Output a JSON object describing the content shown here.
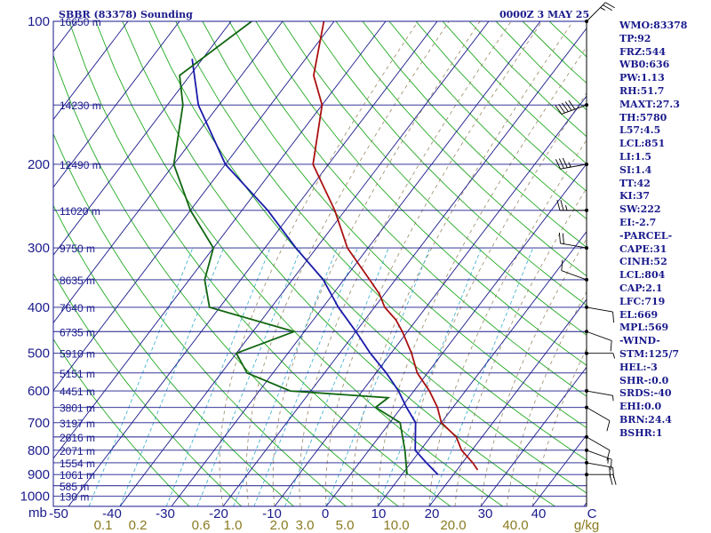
{
  "header": {
    "station": "SBBR (83378) Sounding",
    "datetime": "0000Z  3 MAY 25"
  },
  "chart_data": {
    "type": "skew-t",
    "y_axis": {
      "scale": "log",
      "pressure_labels": [
        "100",
        "200",
        "300",
        "400",
        "500",
        "600",
        "700",
        "800",
        "900",
        "1000"
      ],
      "unit_label": "mb"
    },
    "x_axis": {
      "temperature_labels": [
        "-50",
        "-40",
        "-30",
        "-20",
        "-10",
        "0",
        "10",
        "20",
        "30",
        "40",
        "C"
      ],
      "mixing_ratio_labels": [
        "0.1",
        "0.2",
        "0.6",
        "1.0",
        "2.0",
        "3.0",
        "5.0",
        "10.0",
        "20.0",
        "40.0",
        "g/kg"
      ]
    },
    "height_levels": [
      {
        "p": 100,
        "label": "16650 m"
      },
      {
        "p": 150,
        "label": "14230 m"
      },
      {
        "p": 200,
        "label": "12490 m"
      },
      {
        "p": 250,
        "label": "11020 m"
      },
      {
        "p": 300,
        "label": "9750 m"
      },
      {
        "p": 350,
        "label": "8635 m"
      },
      {
        "p": 400,
        "label": "7640 m"
      },
      {
        "p": 450,
        "label": "6735 m"
      },
      {
        "p": 500,
        "label": "5910 m"
      },
      {
        "p": 550,
        "label": "5151 m"
      },
      {
        "p": 600,
        "label": "4451 m"
      },
      {
        "p": 650,
        "label": "3801 m"
      },
      {
        "p": 700,
        "label": "3197 m"
      },
      {
        "p": 750,
        "label": "2616 m"
      },
      {
        "p": 800,
        "label": "2071 m"
      },
      {
        "p": 850,
        "label": "1554 m"
      },
      {
        "p": 900,
        "label": "1061 m"
      },
      {
        "p": 950,
        "label": "585 m"
      },
      {
        "p": 1000,
        "label": "130 m"
      }
    ],
    "temperature": {
      "color": "#aa1111",
      "points": [
        [
          100,
          -72
        ],
        [
          130,
          -66
        ],
        [
          150,
          -60
        ],
        [
          200,
          -53
        ],
        [
          250,
          -42
        ],
        [
          300,
          -34
        ],
        [
          350,
          -25
        ],
        [
          375,
          -21
        ],
        [
          400,
          -18
        ],
        [
          425,
          -14
        ],
        [
          450,
          -11
        ],
        [
          500,
          -6
        ],
        [
          550,
          -2
        ],
        [
          600,
          3
        ],
        [
          650,
          7
        ],
        [
          700,
          10
        ],
        [
          750,
          15
        ],
        [
          800,
          18
        ],
        [
          850,
          22
        ],
        [
          880,
          24
        ]
      ]
    },
    "dewpoint": {
      "color": "#116611",
      "points": [
        [
          100,
          -86
        ],
        [
          130,
          -92
        ],
        [
          150,
          -87
        ],
        [
          200,
          -80
        ],
        [
          250,
          -70
        ],
        [
          300,
          -60
        ],
        [
          350,
          -57
        ],
        [
          400,
          -52
        ],
        [
          450,
          -32
        ],
        [
          500,
          -40
        ],
        [
          550,
          -35
        ],
        [
          600,
          -24
        ],
        [
          620,
          -4
        ],
        [
          650,
          -5
        ],
        [
          700,
          2
        ],
        [
          800,
          7
        ],
        [
          900,
          11
        ]
      ]
    },
    "parcel": {
      "color": "#1a1aaa",
      "points": [
        [
          120,
          -92
        ],
        [
          150,
          -84
        ],
        [
          200,
          -70
        ],
        [
          250,
          -55
        ],
        [
          300,
          -44
        ],
        [
          350,
          -34
        ],
        [
          400,
          -27
        ],
        [
          450,
          -20
        ],
        [
          500,
          -14
        ],
        [
          550,
          -8
        ],
        [
          600,
          -3
        ],
        [
          650,
          1
        ],
        [
          700,
          5
        ],
        [
          800,
          9
        ],
        [
          850,
          13
        ],
        [
          900,
          17
        ]
      ]
    },
    "wind_barbs": [
      {
        "p": 100,
        "dir": 45,
        "kt": 25
      },
      {
        "p": 150,
        "dir": 250,
        "kt": 50
      },
      {
        "p": 200,
        "dir": 260,
        "kt": 35
      },
      {
        "p": 250,
        "dir": 270,
        "kt": 25
      },
      {
        "p": 300,
        "dir": 280,
        "kt": 20
      },
      {
        "p": 350,
        "dir": 290,
        "kt": 10
      },
      {
        "p": 400,
        "dir": 100,
        "kt": 10
      },
      {
        "p": 450,
        "dir": 110,
        "kt": 10
      },
      {
        "p": 500,
        "dir": 90,
        "kt": 5
      },
      {
        "p": 600,
        "dir": 100,
        "kt": 5
      },
      {
        "p": 650,
        "dir": 120,
        "kt": 10
      },
      {
        "p": 750,
        "dir": 120,
        "kt": 10
      },
      {
        "p": 800,
        "dir": 110,
        "kt": 15
      },
      {
        "p": 850,
        "dir": 100,
        "kt": 20
      },
      {
        "p": 900,
        "dir": 90,
        "kt": 20
      }
    ]
  },
  "indices": [
    "WMO:83378",
    "TP:92",
    "FRZ:544",
    "WB0:636",
    "PW:1.13",
    "RH:51.7",
    "MAXT:27.3",
    "TH:5780",
    "L57:4.5",
    "LCL:851",
    "LI:1.5",
    "SI:1.4",
    "TT:42",
    "KI:37",
    "SW:222",
    "EI:-2.7",
    "-PARCEL-",
    "CAPE:31",
    "CINH:52",
    "LCL:804",
    "CAP:2.1",
    "LFC:719",
    "EL:669",
    "MPL:569",
    "-WIND-",
    "STM:125/7",
    "HEL:-3",
    "SHR-:0.0",
    "SRDS:-40",
    "EHI:0.0",
    "BRN:24.4",
    "BSHR:1"
  ]
}
